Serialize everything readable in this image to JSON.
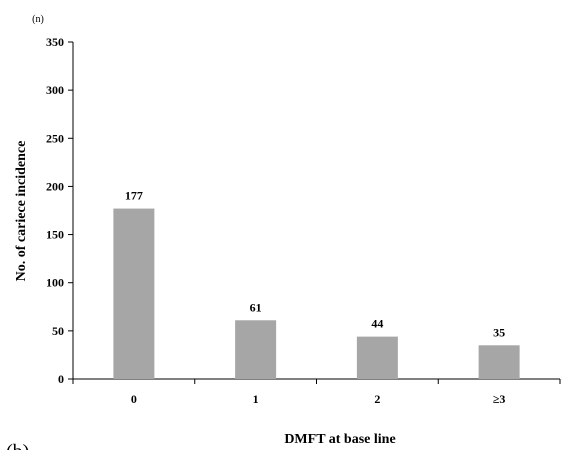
{
  "chart_data": {
    "type": "bar",
    "title": "",
    "categories": [
      "0",
      "1",
      "2",
      "≥3"
    ],
    "values": [
      177,
      61,
      44,
      35
    ],
    "data_labels": [
      "177",
      "61",
      "44",
      "35"
    ],
    "xlabel": "DMFT at base line",
    "ylabel": "No. of cariece incidence",
    "y_unit": "(n)",
    "ylim": [
      0,
      350
    ],
    "yticks": [
      0,
      50,
      100,
      150,
      200,
      250,
      300,
      350
    ],
    "grid": false,
    "bar_color": "#a6a6a6"
  },
  "panel_label": "(b)"
}
